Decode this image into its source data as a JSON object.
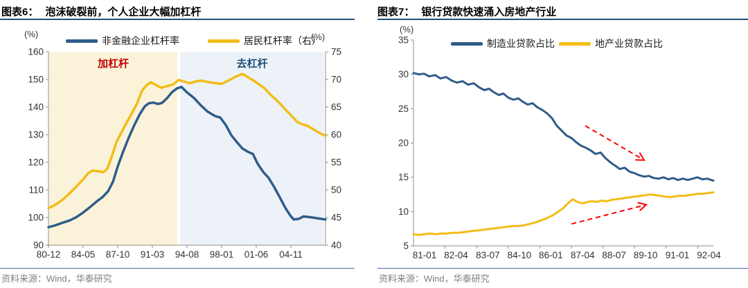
{
  "panels": [
    {
      "label": "图表6：",
      "title": "泡沫破裂前，个人企业大幅加杠杆",
      "source": "资料来源：Wind，华泰研究"
    },
    {
      "label": "图表7：",
      "title": "银行贷款快速涌入房地产行业",
      "source": "资料来源：Wind，华泰研究"
    }
  ],
  "colors": {
    "navy": "#2F5C8A",
    "gold": "#F3BC19",
    "red": "#FF0000",
    "deep_navy": "#1F4E79",
    "crimson": "#C00000",
    "shade_yellow": "#FBF3D9",
    "shade_blue": "#EDF2F8",
    "axis": "#8C8C8C",
    "source_rule": "#4472A8"
  },
  "chart_data": [
    {
      "type": "line",
      "title": "泡沫破裂前，个人企业大幅加杠杆",
      "unit_left": "(%)",
      "unit_right": "(%)",
      "y_left": {
        "min": 90,
        "max": 160,
        "ticks": [
          160,
          150,
          140,
          130,
          120,
          110,
          100,
          90
        ]
      },
      "y_right": {
        "min": 40,
        "max": 75,
        "ticks": [
          75,
          70,
          65,
          60,
          55,
          50,
          45,
          40
        ]
      },
      "x_labels": [
        "80-12",
        "84-05",
        "87-10",
        "91-03",
        "94-08",
        "98-01",
        "01-06",
        "04-11"
      ],
      "x_label_pos": [
        0,
        12.5,
        25,
        37.5,
        50,
        62.5,
        75,
        87.5
      ],
      "x_tick_pos": [
        0,
        12.5,
        25,
        37.5,
        50,
        62.5,
        75,
        87.5
      ],
      "grid": false,
      "legend_position": "top",
      "regions": [
        {
          "label": "加杠杆",
          "from": 0.25,
          "to": 46.5,
          "fill": "shade_yellow",
          "label_color": "crimson"
        },
        {
          "label": "去杠杆",
          "from": 47.5,
          "to": 99.5,
          "fill": "shade_blue",
          "label_color": "deep_navy"
        }
      ],
      "series": [
        {
          "name": "非金融企业杠杆率",
          "axis": "left",
          "color": "navy",
          "points": [
            [
              0,
              96.5
            ],
            [
              2.5,
              97.2
            ],
            [
              5,
              98.1
            ],
            [
              7.5,
              98.9
            ],
            [
              10,
              100.1
            ],
            [
              12.5,
              101.8
            ],
            [
              15,
              103.8
            ],
            [
              17.5,
              105.9
            ],
            [
              19.5,
              107.4
            ],
            [
              21.5,
              109.5
            ],
            [
              23.3,
              113
            ],
            [
              25,
              118.5
            ],
            [
              27,
              124
            ],
            [
              29,
              129
            ],
            [
              31,
              133.5
            ],
            [
              33,
              137.5
            ],
            [
              34.8,
              140.3
            ],
            [
              36.3,
              141.4
            ],
            [
              38,
              141.6
            ],
            [
              39.5,
              141.1
            ],
            [
              41,
              141.5
            ],
            [
              42.8,
              143.2
            ],
            [
              44.5,
              145.3
            ],
            [
              46.3,
              146.7
            ],
            [
              48,
              147.3
            ],
            [
              50,
              145.3
            ],
            [
              52.5,
              143.3
            ],
            [
              55,
              140.6
            ],
            [
              57.5,
              138.3
            ],
            [
              60,
              136.8
            ],
            [
              62,
              136.2
            ],
            [
              64,
              133.5
            ],
            [
              66,
              129.8
            ],
            [
              68,
              127.3
            ],
            [
              70,
              125
            ],
            [
              72,
              123.8
            ],
            [
              73.8,
              123
            ],
            [
              75.5,
              119.5
            ],
            [
              77.5,
              116.5
            ],
            [
              79.5,
              114.3
            ],
            [
              81.5,
              111
            ],
            [
              83.5,
              107.3
            ],
            [
              85.5,
              103.5
            ],
            [
              87.3,
              100.7
            ],
            [
              88.5,
              99.3
            ],
            [
              90.3,
              99.5
            ],
            [
              92,
              100.4
            ],
            [
              94,
              100.2
            ],
            [
              96,
              99.9
            ],
            [
              98,
              99.6
            ],
            [
              100,
              99.3
            ]
          ]
        },
        {
          "name": "居民杠杆率（右）",
          "axis": "right",
          "color": "gold",
          "points": [
            [
              0,
              46.7
            ],
            [
              2.5,
              47.3
            ],
            [
              5,
              48.2
            ],
            [
              7.5,
              49.3
            ],
            [
              10,
              50.6
            ],
            [
              12.5,
              51.9
            ],
            [
              14.3,
              53
            ],
            [
              15.8,
              53.5
            ],
            [
              17.8,
              53.4
            ],
            [
              19.8,
              53.2
            ],
            [
              21.3,
              53.9
            ],
            [
              22.8,
              56
            ],
            [
              24.5,
              58.6
            ],
            [
              26.3,
              60.4
            ],
            [
              28,
              62
            ],
            [
              30,
              63.8
            ],
            [
              32,
              65.7
            ],
            [
              33.8,
              68
            ],
            [
              35.5,
              69
            ],
            [
              37,
              69.5
            ],
            [
              39,
              68.9
            ],
            [
              40.8,
              68.5
            ],
            [
              43,
              68.8
            ],
            [
              45,
              69.1
            ],
            [
              47,
              69.9
            ],
            [
              49,
              69.6
            ],
            [
              51,
              69.3
            ],
            [
              53,
              69.6
            ],
            [
              55,
              69.8
            ],
            [
              57,
              69.6
            ],
            [
              59,
              69.4
            ],
            [
              60.8,
              69.3
            ],
            [
              62.5,
              69.2
            ],
            [
              65,
              69.8
            ],
            [
              67.5,
              70.5
            ],
            [
              70,
              71
            ],
            [
              72,
              70.4
            ],
            [
              74,
              69.8
            ],
            [
              76,
              69.1
            ],
            [
              78,
              68.4
            ],
            [
              80,
              67.3
            ],
            [
              82,
              66.4
            ],
            [
              84,
              65.4
            ],
            [
              86,
              64.3
            ],
            [
              88,
              63.3
            ],
            [
              89.8,
              62.3
            ],
            [
              91.5,
              61.9
            ],
            [
              93.5,
              61.6
            ],
            [
              95.5,
              61
            ],
            [
              97.5,
              60.4
            ],
            [
              100,
              59.8
            ]
          ]
        }
      ]
    },
    {
      "type": "line",
      "title": "银行贷款快速涌入房地产行业",
      "unit_left": "(%)",
      "y_left": {
        "min": 5,
        "max": 35,
        "ticks": [
          35,
          30,
          25,
          20,
          15,
          10,
          5
        ]
      },
      "x_labels": [
        "81-01",
        "82-04",
        "83-07",
        "84-10",
        "86-01",
        "87-04",
        "88-07",
        "89-10",
        "91-01",
        "92-04"
      ],
      "x_label_pos": [
        3.7,
        14.2,
        24.8,
        35.3,
        45.8,
        56.4,
        66.9,
        77.4,
        88,
        98.5
      ],
      "x_tick_pos": [
        10.5,
        21.1,
        31.6,
        42.1,
        52.7,
        63.2,
        73.7,
        84.2,
        94.8
      ],
      "grid": false,
      "legend_position": "top",
      "series": [
        {
          "name": "制造业贷款占比",
          "axis": "left",
          "color": "navy",
          "points": [
            [
              0,
              30.2
            ],
            [
              1.8,
              30
            ],
            [
              3.5,
              30.1
            ],
            [
              5.3,
              29.7
            ],
            [
              7.2,
              29.9
            ],
            [
              9,
              29.4
            ],
            [
              10.9,
              29.6
            ],
            [
              12.7,
              29.1
            ],
            [
              14.5,
              28.8
            ],
            [
              16.4,
              29
            ],
            [
              18.2,
              28.5
            ],
            [
              20.1,
              28.7
            ],
            [
              21.9,
              28.1
            ],
            [
              23.6,
              27.7
            ],
            [
              25.2,
              27.9
            ],
            [
              26.8,
              27.4
            ],
            [
              28.4,
              27
            ],
            [
              30,
              27.2
            ],
            [
              31.6,
              26.6
            ],
            [
              33.3,
              26.3
            ],
            [
              34.9,
              26.5
            ],
            [
              36.5,
              26
            ],
            [
              38.1,
              25.6
            ],
            [
              39.7,
              25.8
            ],
            [
              41.3,
              25.2
            ],
            [
              43,
              24.8
            ],
            [
              44.6,
              24.3
            ],
            [
              46.2,
              23.6
            ],
            [
              47.8,
              22.5
            ],
            [
              49.4,
              21.8
            ],
            [
              51,
              21.1
            ],
            [
              52.7,
              20.7
            ],
            [
              54.3,
              20.1
            ],
            [
              55.9,
              19.6
            ],
            [
              57.5,
              19.3
            ],
            [
              59.1,
              18.9
            ],
            [
              60.7,
              18.4
            ],
            [
              62.4,
              18.6
            ],
            [
              64,
              17.8
            ],
            [
              65.6,
              17.2
            ],
            [
              67.2,
              16.7
            ],
            [
              68.8,
              16.2
            ],
            [
              70.4,
              16.4
            ],
            [
              72.1,
              15.8
            ],
            [
              73.7,
              15.6
            ],
            [
              75.3,
              15.3
            ],
            [
              76.9,
              15.1
            ],
            [
              78.5,
              15.2
            ],
            [
              80.1,
              14.9
            ],
            [
              81.8,
              14.8
            ],
            [
              83.4,
              15
            ],
            [
              85,
              14.7
            ],
            [
              86.6,
              14.9
            ],
            [
              88.2,
              14.6
            ],
            [
              89.8,
              14.8
            ],
            [
              91.5,
              14.6
            ],
            [
              93.1,
              14.8
            ],
            [
              94.7,
              15
            ],
            [
              96.3,
              14.7
            ],
            [
              97.9,
              14.8
            ],
            [
              100,
              14.5
            ]
          ]
        },
        {
          "name": "地产业贷款占比",
          "axis": "left",
          "color": "gold",
          "points": [
            [
              0,
              6.7
            ],
            [
              1.8,
              6.6
            ],
            [
              3.7,
              6.7
            ],
            [
              5.5,
              6.8
            ],
            [
              7.4,
              6.7
            ],
            [
              9.2,
              6.8
            ],
            [
              11.1,
              6.8
            ],
            [
              12.9,
              6.9
            ],
            [
              14.8,
              6.9
            ],
            [
              16.6,
              7
            ],
            [
              18.5,
              7.1
            ],
            [
              20.3,
              7.2
            ],
            [
              22.2,
              7.3
            ],
            [
              24,
              7.4
            ],
            [
              25.9,
              7.5
            ],
            [
              27.7,
              7.6
            ],
            [
              29.6,
              7.7
            ],
            [
              31.4,
              7.8
            ],
            [
              33.3,
              7.9
            ],
            [
              35.1,
              7.9
            ],
            [
              36.9,
              8
            ],
            [
              38.8,
              8.2
            ],
            [
              40.6,
              8.4
            ],
            [
              42.5,
              8.7
            ],
            [
              44.3,
              9
            ],
            [
              46.2,
              9.4
            ],
            [
              48,
              9.9
            ],
            [
              49.9,
              10.5
            ],
            [
              51.5,
              11.2
            ],
            [
              53.1,
              11.8
            ],
            [
              54.7,
              11.4
            ],
            [
              56.4,
              11.2
            ],
            [
              58,
              11.4
            ],
            [
              59.6,
              11.5
            ],
            [
              61.2,
              11.4
            ],
            [
              62.8,
              11.6
            ],
            [
              64.4,
              11.5
            ],
            [
              66.1,
              11.7
            ],
            [
              67.7,
              11.8
            ],
            [
              69.3,
              11.9
            ],
            [
              70.9,
              12
            ],
            [
              72.5,
              12.1
            ],
            [
              74.1,
              12.2
            ],
            [
              75.8,
              12.3
            ],
            [
              77.4,
              12.4
            ],
            [
              79,
              12.5
            ],
            [
              80.6,
              12.4
            ],
            [
              82.2,
              12.3
            ],
            [
              83.8,
              12.2
            ],
            [
              85.5,
              12.1
            ],
            [
              87.1,
              12.2
            ],
            [
              88.7,
              12.3
            ],
            [
              90.3,
              12.3
            ],
            [
              91.9,
              12.4
            ],
            [
              93.5,
              12.5
            ],
            [
              95.1,
              12.6
            ],
            [
              96.8,
              12.6
            ],
            [
              98.4,
              12.7
            ],
            [
              100,
              12.8
            ]
          ]
        }
      ],
      "annotations": [
        {
          "type": "arrow",
          "direction": "down",
          "from": [
            57.3,
            22.5
          ],
          "to": [
            76.9,
            17.5
          ]
        },
        {
          "type": "arrow",
          "direction": "up",
          "from": [
            52.7,
            8.2
          ],
          "to": [
            77.6,
            11.0
          ]
        }
      ]
    }
  ]
}
